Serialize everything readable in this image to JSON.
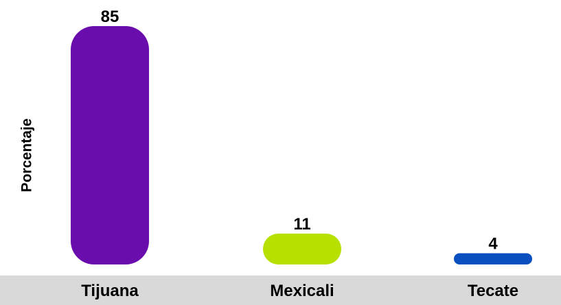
{
  "chart_data": {
    "type": "bar",
    "title": "",
    "xlabel": "",
    "ylabel": "Porcentaje",
    "categories": [
      "Tijuana",
      "Mexicali",
      "Tecate"
    ],
    "values": [
      85,
      11,
      4
    ],
    "data_labels": [
      "85",
      "11",
      "4"
    ],
    "colors": [
      "#6A0DAD",
      "#B5E000",
      "#0A4FC0"
    ],
    "axis_band_color": "#D9D9D9",
    "ylim": [
      0,
      85
    ],
    "grid": false,
    "legend": "none"
  }
}
